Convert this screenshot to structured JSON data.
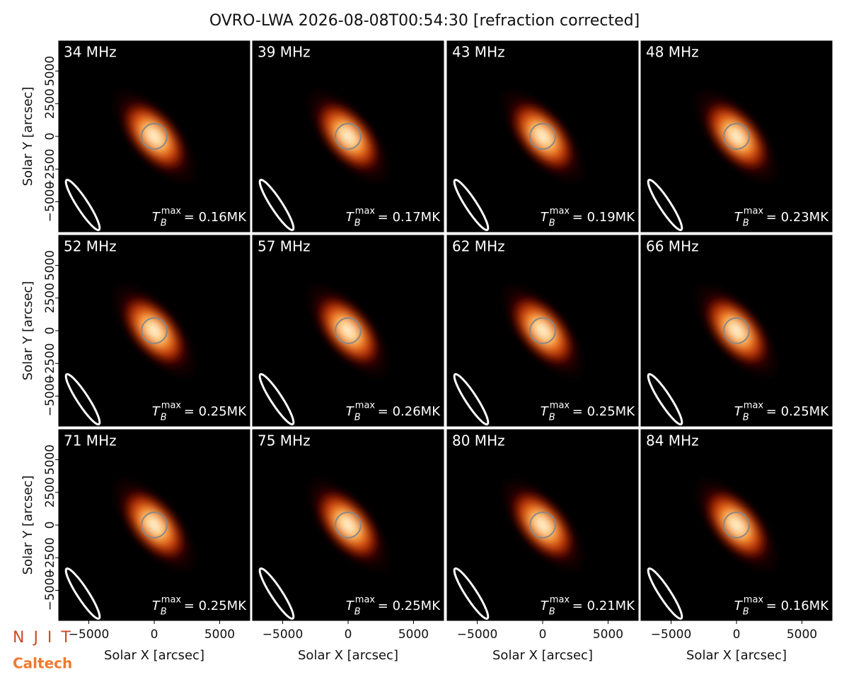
{
  "title": "OVRO-LWA 2026-08-08T00:54:30 [refraction corrected]",
  "logos": [
    "N J I T",
    "Caltech"
  ],
  "chart_data": [
    {
      "type": "image",
      "label": "34 MHz",
      "tb_symbol": "T",
      "tb_sub": "B",
      "tb_sup": "max",
      "annotation": "= 0.16MK",
      "xlim": [
        -7300,
        7300
      ],
      "ylim": [
        -7300,
        7300
      ],
      "ylabel": "Solar Y [arcsec]",
      "yticks": [
        {
          "value": -5000,
          "label": "−5000"
        },
        {
          "value": -2500,
          "label": "−2500"
        },
        0,
        2500,
        5000
      ]
    },
    {
      "type": "image",
      "label": "39 MHz",
      "tb_symbol": "T",
      "tb_sub": "B",
      "tb_sup": "max",
      "annotation": "= 0.17MK",
      "xlim": [
        -7300,
        7300
      ],
      "ylim": [
        -7300,
        7300
      ]
    },
    {
      "type": "image",
      "label": "43 MHz",
      "tb_symbol": "T",
      "tb_sub": "B",
      "tb_sup": "max",
      "annotation": "= 0.19MK",
      "xlim": [
        -7300,
        7300
      ],
      "ylim": [
        -7300,
        7300
      ]
    },
    {
      "type": "image",
      "label": "48 MHz",
      "tb_symbol": "T",
      "tb_sub": "B",
      "tb_sup": "max",
      "annotation": "= 0.23MK",
      "xlim": [
        -7300,
        7300
      ],
      "ylim": [
        -7300,
        7300
      ]
    },
    {
      "type": "image",
      "label": "52 MHz",
      "tb_symbol": "T",
      "tb_sub": "B",
      "tb_sup": "max",
      "annotation": "= 0.25MK",
      "xlim": [
        -7300,
        7300
      ],
      "ylim": [
        -7300,
        7300
      ],
      "ylabel": "Solar Y [arcsec]",
      "yticks": [
        {
          "value": -5000,
          "label": "−5000"
        },
        {
          "value": -2500,
          "label": "−2500"
        },
        0,
        2500,
        5000
      ]
    },
    {
      "type": "image",
      "label": "57 MHz",
      "tb_symbol": "T",
      "tb_sub": "B",
      "tb_sup": "max",
      "annotation": "= 0.26MK",
      "xlim": [
        -7300,
        7300
      ],
      "ylim": [
        -7300,
        7300
      ]
    },
    {
      "type": "image",
      "label": "62 MHz",
      "tb_symbol": "T",
      "tb_sub": "B",
      "tb_sup": "max",
      "annotation": "= 0.25MK",
      "xlim": [
        -7300,
        7300
      ],
      "ylim": [
        -7300,
        7300
      ]
    },
    {
      "type": "image",
      "label": "66 MHz",
      "tb_symbol": "T",
      "tb_sub": "B",
      "tb_sup": "max",
      "annotation": "= 0.25MK",
      "xlim": [
        -7300,
        7300
      ],
      "ylim": [
        -7300,
        7300
      ]
    },
    {
      "type": "image",
      "label": "71 MHz",
      "tb_symbol": "T",
      "tb_sub": "B",
      "tb_sup": "max",
      "annotation": "= 0.25MK",
      "xlim": [
        -7300,
        7300
      ],
      "ylim": [
        -7300,
        7300
      ],
      "ylabel": "Solar Y [arcsec]",
      "yticks": [
        {
          "value": -5000,
          "label": "−5000"
        },
        {
          "value": -2500,
          "label": "−2500"
        },
        0,
        2500,
        5000
      ],
      "xlabel": "Solar X [arcsec]",
      "xticks": [
        {
          "value": -5000,
          "label": "−5000"
        },
        0,
        5000
      ]
    },
    {
      "type": "image",
      "label": "75 MHz",
      "tb_symbol": "T",
      "tb_sub": "B",
      "tb_sup": "max",
      "annotation": "= 0.25MK",
      "xlim": [
        -7300,
        7300
      ],
      "ylim": [
        -7300,
        7300
      ],
      "xlabel": "Solar X [arcsec]",
      "xticks": [
        {
          "value": -5000,
          "label": "−5000"
        },
        0,
        5000
      ]
    },
    {
      "type": "image",
      "label": "80 MHz",
      "tb_symbol": "T",
      "tb_sub": "B",
      "tb_sup": "max",
      "annotation": "= 0.21MK",
      "xlim": [
        -7300,
        7300
      ],
      "ylim": [
        -7300,
        7300
      ],
      "xlabel": "Solar X [arcsec]",
      "xticks": [
        {
          "value": -5000,
          "label": "−5000"
        },
        0,
        5000
      ]
    },
    {
      "type": "image",
      "label": "84 MHz",
      "tb_symbol": "T",
      "tb_sub": "B",
      "tb_sup": "max",
      "annotation": "= 0.16MK",
      "xlim": [
        -7300,
        7300
      ],
      "ylim": [
        -7300,
        7300
      ],
      "xlabel": "Solar X [arcsec]",
      "xticks": [
        {
          "value": -5000,
          "label": "−5000"
        },
        0,
        5000
      ]
    }
  ]
}
